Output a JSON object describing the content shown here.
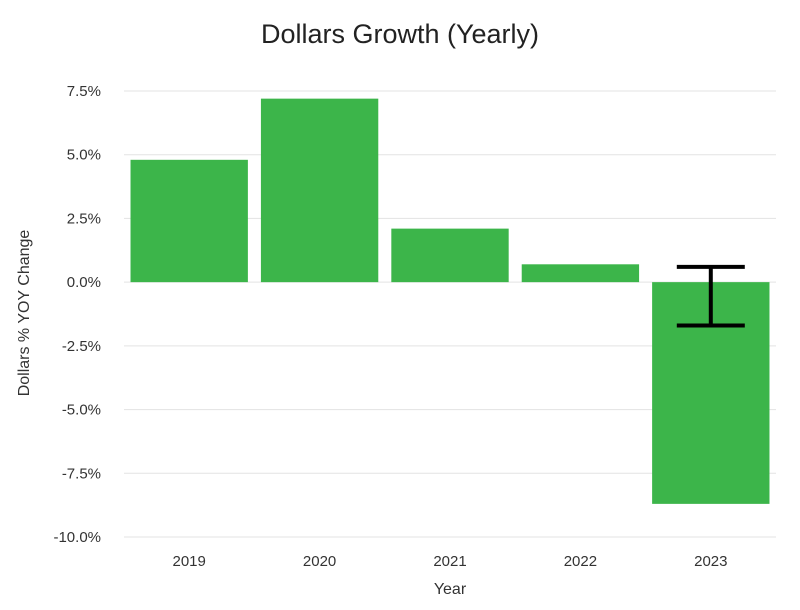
{
  "chart_data": {
    "type": "bar",
    "title": "Dollars Growth (Yearly)",
    "xlabel": "Year",
    "ylabel": "Dollars % YOY Change",
    "categories": [
      "2019",
      "2020",
      "2021",
      "2022",
      "2023"
    ],
    "values": [
      4.8,
      7.2,
      2.1,
      0.7,
      -8.7
    ],
    "error_bar": {
      "category": "2023",
      "low": -1.7,
      "high": 0.6
    },
    "ylim": [
      -10,
      7.5
    ],
    "yticks": [
      7.5,
      5.0,
      2.5,
      0.0,
      -2.5,
      -5.0,
      -7.5,
      -10.0
    ],
    "ytick_labels": [
      "7.5%",
      "5.0%",
      "2.5%",
      "0.0%",
      "-2.5%",
      "-5.0%",
      "-7.5%",
      "-10.0%"
    ],
    "bar_color": "#3cb54a",
    "error_bar_color": "#000000",
    "grid": true,
    "legend": "none"
  }
}
